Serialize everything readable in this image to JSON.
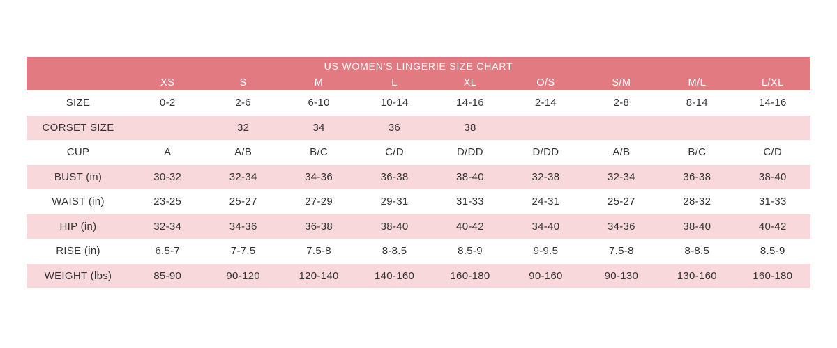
{
  "chart_data": {
    "type": "table",
    "title": "US WOMEN'S LINGERIE SIZE CHART",
    "column_headers": [
      "",
      "XS",
      "S",
      "M",
      "L",
      "XL",
      "O/S",
      "S/M",
      "M/L",
      "L/XL"
    ],
    "rows": [
      {
        "label": "SIZE",
        "values": [
          "0-2",
          "2-6",
          "6-10",
          "10-14",
          "14-16",
          "2-14",
          "2-8",
          "8-14",
          "14-16"
        ]
      },
      {
        "label": "CORSET SIZE",
        "values": [
          "",
          "32",
          "34",
          "36",
          "38",
          "",
          "",
          "",
          ""
        ]
      },
      {
        "label": "CUP",
        "values": [
          "A",
          "A/B",
          "B/C",
          "C/D",
          "D/DD",
          "D/DD",
          "A/B",
          "B/C",
          "C/D"
        ]
      },
      {
        "label": "BUST (in)",
        "values": [
          "30-32",
          "32-34",
          "34-36",
          "36-38",
          "38-40",
          "32-38",
          "32-34",
          "36-38",
          "38-40"
        ]
      },
      {
        "label": "WAIST (in)",
        "values": [
          "23-25",
          "25-27",
          "27-29",
          "29-31",
          "31-33",
          "24-31",
          "25-27",
          "28-32",
          "31-33"
        ]
      },
      {
        "label": "HIP (in)",
        "values": [
          "32-34",
          "34-36",
          "36-38",
          "38-40",
          "40-42",
          "34-40",
          "34-36",
          "38-40",
          "40-42"
        ]
      },
      {
        "label": "RISE (in)",
        "values": [
          "6.5-7",
          "7-7.5",
          "7.5-8",
          "8-8.5",
          "8.5-9",
          "9-9.5",
          "7.5-8",
          "8-8.5",
          "8.5-9"
        ]
      },
      {
        "label": "WEIGHT (lbs)",
        "values": [
          "85-90",
          "90-120",
          "120-140",
          "140-160",
          "160-180",
          "90-160",
          "90-130",
          "130-160",
          "160-180"
        ]
      }
    ],
    "layout": {
      "grid": "off",
      "stripes": "alternating white/pink rows",
      "header_position": "top"
    },
    "colors": {
      "header_bg": "#e17b81",
      "header_text": "#ffffff",
      "stripe_bg": "#f9d8db",
      "text": "#333333"
    }
  }
}
